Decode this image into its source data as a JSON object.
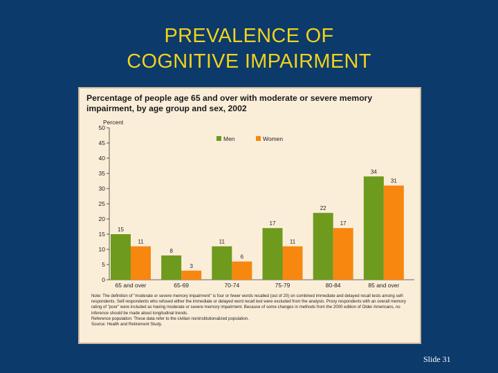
{
  "slide": {
    "title_line1": "PREVALENCE OF",
    "title_line2": "COGNITIVE IMPAIRMENT",
    "slide_number": "Slide 31"
  },
  "colors": {
    "background": "#0b3a6b",
    "title": "#f2d21b",
    "men": "#6e9a1e",
    "women": "#f7870f",
    "panel": "#fbeed9"
  },
  "chart_data": {
    "type": "bar",
    "title": "Percentage of people age 65 and over with moderate or severe memory impairment, by age group and sex, 2002",
    "ylabel": "Percent",
    "xlabel": "",
    "ylim": [
      0,
      50
    ],
    "yticks": [
      0,
      5,
      10,
      15,
      20,
      25,
      30,
      35,
      40,
      45,
      50
    ],
    "categories": [
      "65 and over",
      "65-69",
      "70-74",
      "75-79",
      "80-84",
      "85 and over"
    ],
    "series": [
      {
        "name": "Men",
        "values": [
          15,
          8,
          11,
          17,
          22,
          34
        ]
      },
      {
        "name": "Women",
        "values": [
          11,
          3,
          6,
          11,
          17,
          31
        ]
      }
    ],
    "legend": "top-left",
    "grid": false
  },
  "notes": {
    "note": "Note: The definition of \"moderate or severe memory impairment\" is four or fewer words recalled (out of 20) on combined immediate and delayed recall tests among self-respondents. Self-respondents who refused either the immediate or delayed word recall test were excluded from the analysis. Proxy respondents with an overall memory rating of \"poor\" were included as having moderate or severe memory impairment. Because of some changes in methods from the 2000 edition of Older Americans, no inference should be made about longitudinal trends.",
    "reference": "Reference population: These data refer to the civilian noninstitutionalized population.",
    "source": "Source: Health and Retirement Study."
  }
}
